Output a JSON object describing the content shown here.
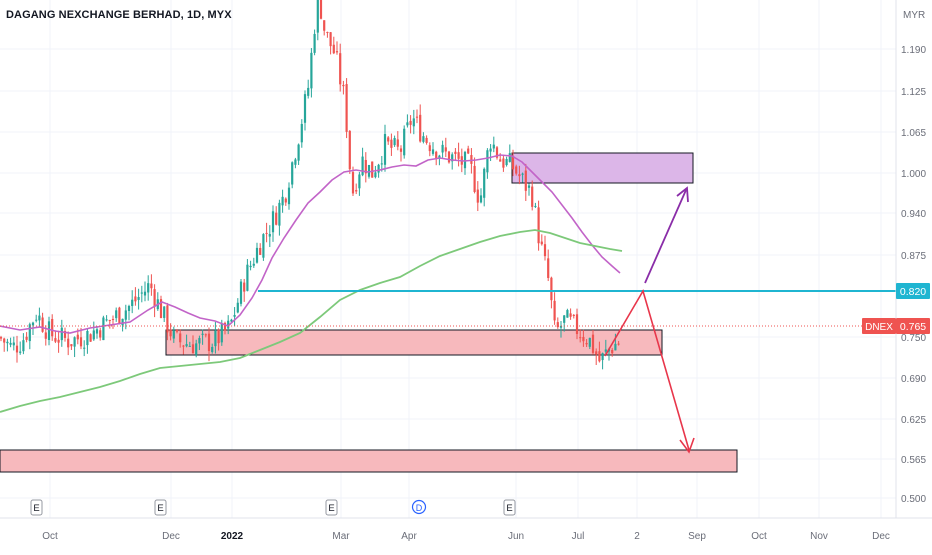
{
  "header": {
    "symbol_title": "DAGANG NEXCHANGE BERHAD, 1D, MYX"
  },
  "chart_data": {
    "type": "candlestick",
    "title": "DAGANG NEXCHANGE BERHAD, 1D, MYX",
    "currency": "MYR",
    "ylim": [
      0.47,
      1.27
    ],
    "y_ticks": [
      "1.190",
      "1.125",
      "1.065",
      "1.000",
      "0.940",
      "0.875",
      "0.820",
      "0.750",
      "0.690",
      "0.625",
      "0.565",
      "0.500"
    ],
    "y_tick_values": [
      1.19,
      1.125,
      1.065,
      1.0,
      0.94,
      0.875,
      0.82,
      0.75,
      0.69,
      0.625,
      0.565,
      0.5
    ],
    "x_ticks": [
      "Oct",
      "Dec",
      "2022",
      "Mar",
      "Apr",
      "Jun",
      "Jul",
      "2",
      "Sep",
      "Oct",
      "Nov",
      "Dec"
    ],
    "earnings_markers": [
      "E",
      "E",
      "E",
      "E"
    ],
    "dividend_markers": [
      "D"
    ],
    "last_price": {
      "ticker": "DNEX",
      "value": "0.765",
      "price": 0.765
    },
    "level_label": {
      "value": "0.820",
      "price": 0.82
    },
    "colors": {
      "up": "#26a69a",
      "down": "#ef5350",
      "ma_fast": "#c264c8",
      "ma_slow": "#7dc97a",
      "level_line": "#1fb5d1",
      "arrow_up": "#8a2da8",
      "arrow_down": "#e8364b",
      "zone_red": "#f7b9bd",
      "zone_purple": "#dcb6e8"
    },
    "zones": [
      {
        "kind": "resistance",
        "top": 1.03,
        "bottom": 0.98,
        "color": "purple"
      },
      {
        "kind": "support",
        "top": 0.77,
        "bottom": 0.73,
        "color": "red"
      },
      {
        "kind": "target",
        "top": 0.575,
        "bottom": 0.545,
        "color": "red"
      }
    ]
  }
}
